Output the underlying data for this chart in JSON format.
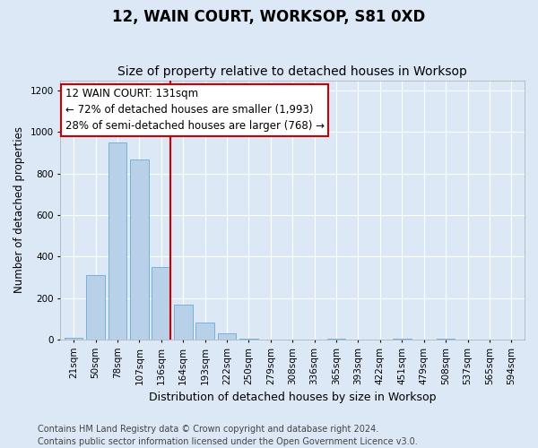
{
  "title": "12, WAIN COURT, WORKSOP, S81 0XD",
  "subtitle": "Size of property relative to detached houses in Worksop",
  "xlabel": "Distribution of detached houses by size in Worksop",
  "ylabel": "Number of detached properties",
  "categories": [
    "21sqm",
    "50sqm",
    "78sqm",
    "107sqm",
    "136sqm",
    "164sqm",
    "193sqm",
    "222sqm",
    "250sqm",
    "279sqm",
    "308sqm",
    "336sqm",
    "365sqm",
    "393sqm",
    "422sqm",
    "451sqm",
    "479sqm",
    "508sqm",
    "537sqm",
    "565sqm",
    "594sqm"
  ],
  "values": [
    10,
    310,
    950,
    870,
    350,
    170,
    80,
    30,
    5,
    0,
    0,
    0,
    5,
    0,
    0,
    5,
    0,
    5,
    0,
    0,
    0
  ],
  "bar_color": "#b8d0e8",
  "bar_edge_color": "#6aaad4",
  "vline_color": "#cc0000",
  "vline_x_index": 4,
  "annotation_text_line1": "12 WAIN COURT: 131sqm",
  "annotation_text_line2": "← 72% of detached houses are smaller (1,993)",
  "annotation_text_line3": "28% of semi-detached houses are larger (768) →",
  "annotation_box_facecolor": "#ffffff",
  "annotation_box_edgecolor": "#cc0000",
  "ylim": [
    0,
    1250
  ],
  "yticks": [
    0,
    200,
    400,
    600,
    800,
    1000,
    1200
  ],
  "footer": "Contains HM Land Registry data © Crown copyright and database right 2024.\nContains public sector information licensed under the Open Government Licence v3.0.",
  "background_color": "#dce8f5",
  "grid_color": "#ffffff",
  "title_fontsize": 12,
  "subtitle_fontsize": 10,
  "tick_fontsize": 7.5,
  "ylabel_fontsize": 8.5,
  "xlabel_fontsize": 9,
  "annotation_fontsize": 8.5,
  "footer_fontsize": 7
}
